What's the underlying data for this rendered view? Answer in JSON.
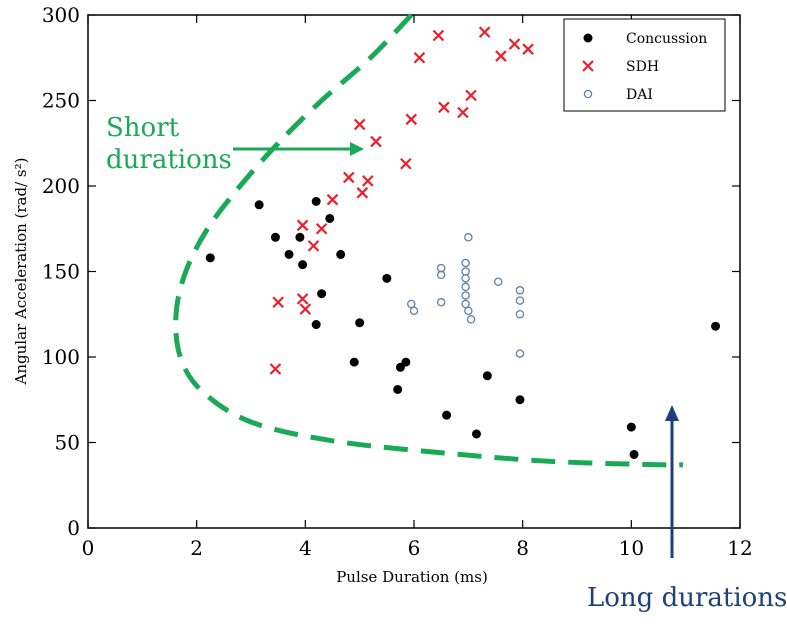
{
  "chart_data": {
    "type": "scatter",
    "xlabel": "Pulse Duration (ms)",
    "ylabel": "Angular Acceleration (rad/ s²)",
    "xlim": [
      0,
      12
    ],
    "ylim": [
      0,
      300
    ],
    "xticks": [
      "0",
      "2",
      "4",
      "6",
      "8",
      "10",
      "12"
    ],
    "yticks": [
      "0",
      "50",
      "100",
      "150",
      "200",
      "250",
      "300"
    ],
    "legend_position": "top-right",
    "series": [
      {
        "name": "Concussion",
        "marker": "filled-circle",
        "color": "#000000",
        "points": [
          [
            2.25,
            158
          ],
          [
            3.15,
            189
          ],
          [
            3.45,
            170
          ],
          [
            3.7,
            160
          ],
          [
            3.9,
            170
          ],
          [
            3.95,
            154
          ],
          [
            4.2,
            191
          ],
          [
            4.45,
            181
          ],
          [
            4.65,
            160
          ],
          [
            4.2,
            119
          ],
          [
            4.3,
            137
          ],
          [
            5.0,
            120
          ],
          [
            4.9,
            97
          ],
          [
            5.5,
            146
          ],
          [
            5.7,
            81
          ],
          [
            5.75,
            94
          ],
          [
            5.85,
            97
          ],
          [
            6.6,
            66
          ],
          [
            7.15,
            55
          ],
          [
            7.35,
            89
          ],
          [
            7.95,
            75
          ],
          [
            10.0,
            59
          ],
          [
            10.05,
            43
          ],
          [
            11.55,
            118
          ]
        ]
      },
      {
        "name": "SDH",
        "marker": "x",
        "color": "#e8212b",
        "points": [
          [
            3.45,
            93
          ],
          [
            3.5,
            132
          ],
          [
            3.95,
            134
          ],
          [
            4.0,
            128
          ],
          [
            3.95,
            177
          ],
          [
            4.15,
            165
          ],
          [
            4.3,
            175
          ],
          [
            4.5,
            192
          ],
          [
            4.8,
            205
          ],
          [
            5.05,
            196
          ],
          [
            5.15,
            203
          ],
          [
            5.0,
            236
          ],
          [
            5.3,
            226
          ],
          [
            5.85,
            213
          ],
          [
            5.95,
            239
          ],
          [
            6.1,
            275
          ],
          [
            6.45,
            288
          ],
          [
            6.55,
            246
          ],
          [
            6.9,
            243
          ],
          [
            7.05,
            253
          ],
          [
            7.3,
            290
          ],
          [
            7.6,
            276
          ],
          [
            7.85,
            283
          ],
          [
            8.1,
            280
          ]
        ]
      },
      {
        "name": "DAI",
        "marker": "open-circle",
        "color": "#5e7fb0",
        "points": [
          [
            5.95,
            131
          ],
          [
            6.0,
            127
          ],
          [
            6.5,
            132
          ],
          [
            6.5,
            148
          ],
          [
            6.5,
            152
          ],
          [
            6.95,
            155
          ],
          [
            6.95,
            150
          ],
          [
            6.95,
            146
          ],
          [
            6.95,
            141
          ],
          [
            6.95,
            136
          ],
          [
            6.95,
            131
          ],
          [
            7.0,
            127
          ],
          [
            7.05,
            122
          ],
          [
            7.0,
            170
          ],
          [
            7.55,
            144
          ],
          [
            7.95,
            139
          ],
          [
            7.95,
            133
          ],
          [
            7.95,
            125
          ],
          [
            7.95,
            102
          ]
        ]
      }
    ],
    "boundary_curve": {
      "style": "dashed",
      "color": "#1aaa55",
      "points": [
        [
          5.95,
          300
        ],
        [
          5.2,
          275
        ],
        [
          4.3,
          250
        ],
        [
          3.5,
          225
        ],
        [
          2.8,
          200
        ],
        [
          2.2,
          175
        ],
        [
          1.8,
          150
        ],
        [
          1.62,
          125
        ],
        [
          1.7,
          100
        ],
        [
          2.1,
          80
        ],
        [
          3.0,
          62
        ],
        [
          4.5,
          51
        ],
        [
          6.5,
          44
        ],
        [
          8.5,
          39
        ],
        [
          10.5,
          37
        ],
        [
          10.95,
          37
        ]
      ]
    },
    "annotations": {
      "short": {
        "line1": "Short",
        "line2": "durations",
        "color": "#1aaa55"
      },
      "long": {
        "text": "Long durations",
        "color": "#1f3f7a"
      }
    }
  }
}
